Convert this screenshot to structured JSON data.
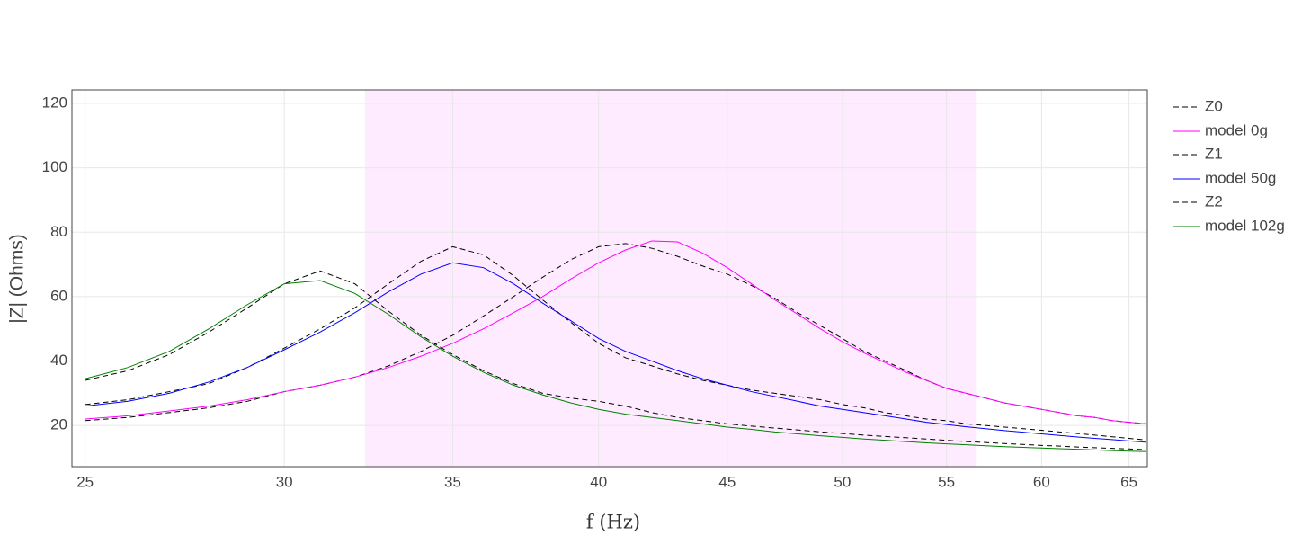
{
  "chart_data": {
    "type": "line",
    "x_label": "f (Hz)",
    "y_label": "|Z| (Ohms)",
    "xscale": "log",
    "grid": true,
    "xlim": [
      24.7,
      66.1
    ],
    "ylim": [
      7.2,
      124.2
    ],
    "xticks": [
      25,
      30,
      35,
      40,
      45,
      50,
      55,
      60,
      65
    ],
    "yticks": [
      20,
      40,
      60,
      80,
      100,
      120
    ],
    "highlight_range": [
      32.3,
      56.5
    ],
    "highlight_color": "rgba(255,0,255,0.08)",
    "legend": "right",
    "x": [
      25,
      26,
      27,
      28,
      29,
      30,
      31,
      32,
      33,
      34,
      35,
      36,
      37,
      38,
      39,
      40,
      41,
      42,
      43,
      44,
      45,
      46,
      47,
      48,
      49,
      50,
      51,
      52,
      53,
      54,
      55,
      56,
      57,
      58,
      59,
      60,
      61,
      62,
      63,
      64,
      65,
      66
    ],
    "series": [
      {
        "name": "Z0",
        "color": "#000000",
        "dash": true,
        "values": [
          21.5,
          22.5,
          24,
          25.5,
          27.5,
          30.5,
          32.5,
          35,
          38.5,
          43,
          48,
          54,
          60,
          66,
          71.5,
          75.5,
          76.5,
          75,
          72.5,
          69.5,
          67,
          63.5,
          59.5,
          55,
          51,
          47,
          43,
          40,
          37,
          34,
          31.5,
          30,
          28.5,
          27,
          26,
          25,
          24,
          23,
          22.5,
          21.5,
          21,
          20.5
        ]
      },
      {
        "name": "model 0g",
        "color": "#ff00ff",
        "dash": false,
        "values": [
          22,
          23,
          24.5,
          26,
          28,
          30.5,
          32.5,
          35,
          38,
          41.5,
          45.5,
          50,
          55,
          60,
          65.5,
          70.5,
          74.5,
          77.3,
          77,
          73.5,
          69,
          64,
          59,
          54.5,
          50,
          46,
          42.5,
          39.5,
          36.5,
          34,
          31.5,
          30,
          28.5,
          27,
          26,
          25,
          24,
          23,
          22.5,
          21.5,
          21,
          20.5
        ]
      },
      {
        "name": "Z1",
        "color": "#000000",
        "dash": true,
        "values": [
          26.5,
          28,
          30.5,
          33,
          38,
          44,
          50,
          56.5,
          64,
          71,
          75.5,
          73,
          66.5,
          59,
          52,
          45.5,
          41,
          38.5,
          36,
          34,
          32.5,
          31,
          30,
          29,
          28,
          26.5,
          25.5,
          24,
          23,
          22,
          21.5,
          20.5,
          20,
          19.5,
          19,
          18.5,
          18,
          17.5,
          17,
          16.5,
          16,
          15.5
        ]
      },
      {
        "name": "model 50g",
        "color": "#0000ff",
        "dash": false,
        "values": [
          26,
          27.5,
          30,
          33.5,
          38,
          43.5,
          49,
          55,
          61.5,
          67,
          70.5,
          69,
          64,
          58,
          52.5,
          47,
          43,
          40,
          37,
          34.5,
          32.5,
          30.5,
          29,
          27.5,
          26,
          25,
          24,
          23,
          22,
          21,
          20.3,
          19.6,
          19,
          18.4,
          17.9,
          17.4,
          16.9,
          16.4,
          16,
          15.6,
          15.2,
          14.8
        ]
      },
      {
        "name": "Z2",
        "color": "#000000",
        "dash": true,
        "values": [
          34,
          37,
          42,
          49,
          56.5,
          64,
          68,
          64,
          55.5,
          48,
          42,
          37,
          33,
          30,
          28.5,
          27.5,
          26,
          24,
          22.5,
          21.5,
          20.5,
          19.8,
          19.2,
          18.6,
          18,
          17.5,
          17,
          16.6,
          16.2,
          15.8,
          15.4,
          15,
          14.7,
          14.4,
          14.1,
          13.8,
          13.6,
          13.3,
          13.1,
          12.9,
          12.7,
          12.5
        ]
      },
      {
        "name": "model 102g",
        "color": "#008000",
        "dash": false,
        "values": [
          34.5,
          38,
          43,
          50,
          57.5,
          64,
          65,
          61,
          54.5,
          47.5,
          41.5,
          36.5,
          32.5,
          29.5,
          27,
          25,
          23.5,
          22.5,
          21.5,
          20.5,
          19.5,
          18.8,
          18,
          17.4,
          16.8,
          16.3,
          15.8,
          15.4,
          15,
          14.6,
          14.3,
          14,
          13.7,
          13.4,
          13.2,
          13,
          12.8,
          12.6,
          12.4,
          12.2,
          12,
          11.9
        ]
      }
    ]
  }
}
